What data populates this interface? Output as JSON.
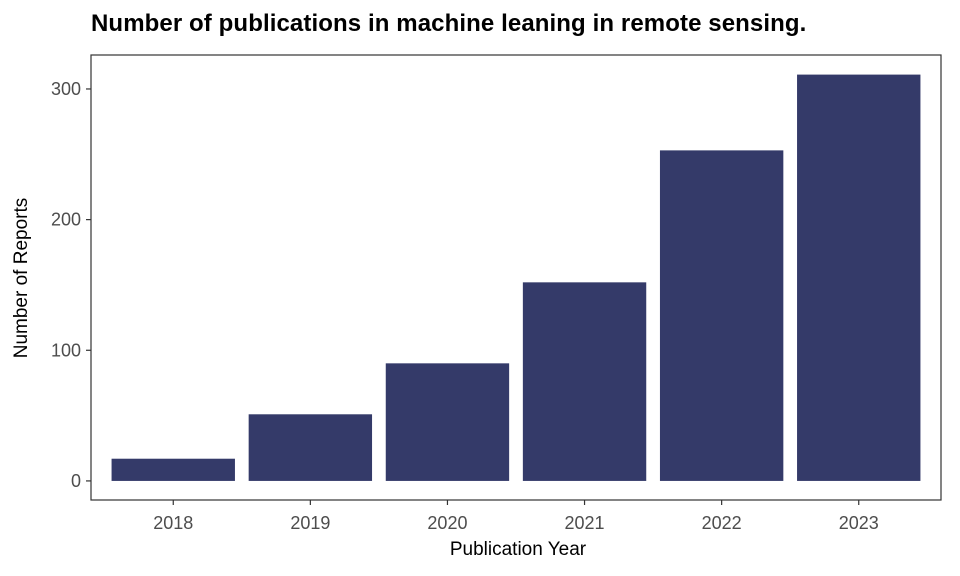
{
  "chart_data": {
    "type": "bar",
    "title": "Number of publications in machine leaning in remote sensing.",
    "xlabel": "Publication Year",
    "ylabel": "Number of Reports",
    "categories": [
      "2018",
      "2019",
      "2020",
      "2021",
      "2022",
      "2023"
    ],
    "values": [
      17,
      51,
      90,
      152,
      253,
      311
    ],
    "ylim": [
      -14.6,
      326
    ],
    "yticks": [
      0,
      100,
      200,
      300
    ],
    "grid": false,
    "legend": "none",
    "bar_color": "#343A69"
  }
}
